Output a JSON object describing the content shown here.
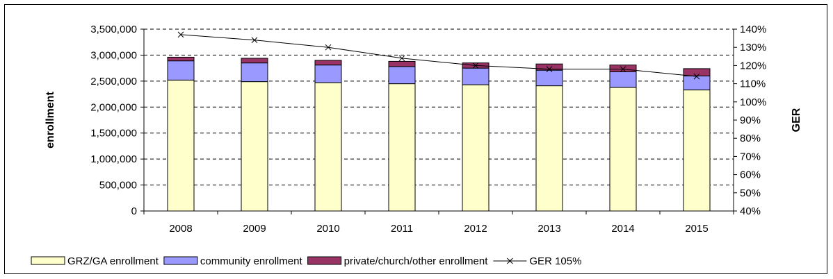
{
  "chart_data": {
    "type": "bar",
    "stacked": true,
    "categories": [
      "2008",
      "2009",
      "2010",
      "2011",
      "2012",
      "2013",
      "2014",
      "2015"
    ],
    "series": [
      {
        "name": "GRZ/GA enrollment",
        "color": "#ffffcc",
        "values": [
          2520000,
          2490000,
          2470000,
          2450000,
          2430000,
          2410000,
          2380000,
          2330000
        ]
      },
      {
        "name": "community enrollment",
        "color": "#9999ff",
        "values": [
          370000,
          360000,
          340000,
          330000,
          320000,
          300000,
          300000,
          270000
        ]
      },
      {
        "name": "private/church/other enrollment",
        "color": "#993366",
        "values": [
          70000,
          90000,
          90000,
          100000,
          100000,
          120000,
          130000,
          140000
        ]
      }
    ],
    "line_series": {
      "name": "GER 105%",
      "axis": "right",
      "marker": "x",
      "color": "#000000",
      "values": [
        137,
        134,
        130,
        124,
        120,
        118,
        118,
        114
      ]
    },
    "ylabel": "enrollment",
    "y2label": "GER",
    "ylim": [
      0,
      3500000
    ],
    "y2lim": [
      40,
      140
    ],
    "yticks": [
      "0",
      "500,000",
      "1,000,000",
      "1,500,000",
      "2,000,000",
      "2,500,000",
      "3,000,000",
      "3,500,000"
    ],
    "y2ticks": [
      "40%",
      "50%",
      "60%",
      "70%",
      "80%",
      "90%",
      "100%",
      "110%",
      "120%",
      "130%",
      "140%"
    ],
    "grid": "dashed-horizontal",
    "legend_position": "bottom"
  }
}
